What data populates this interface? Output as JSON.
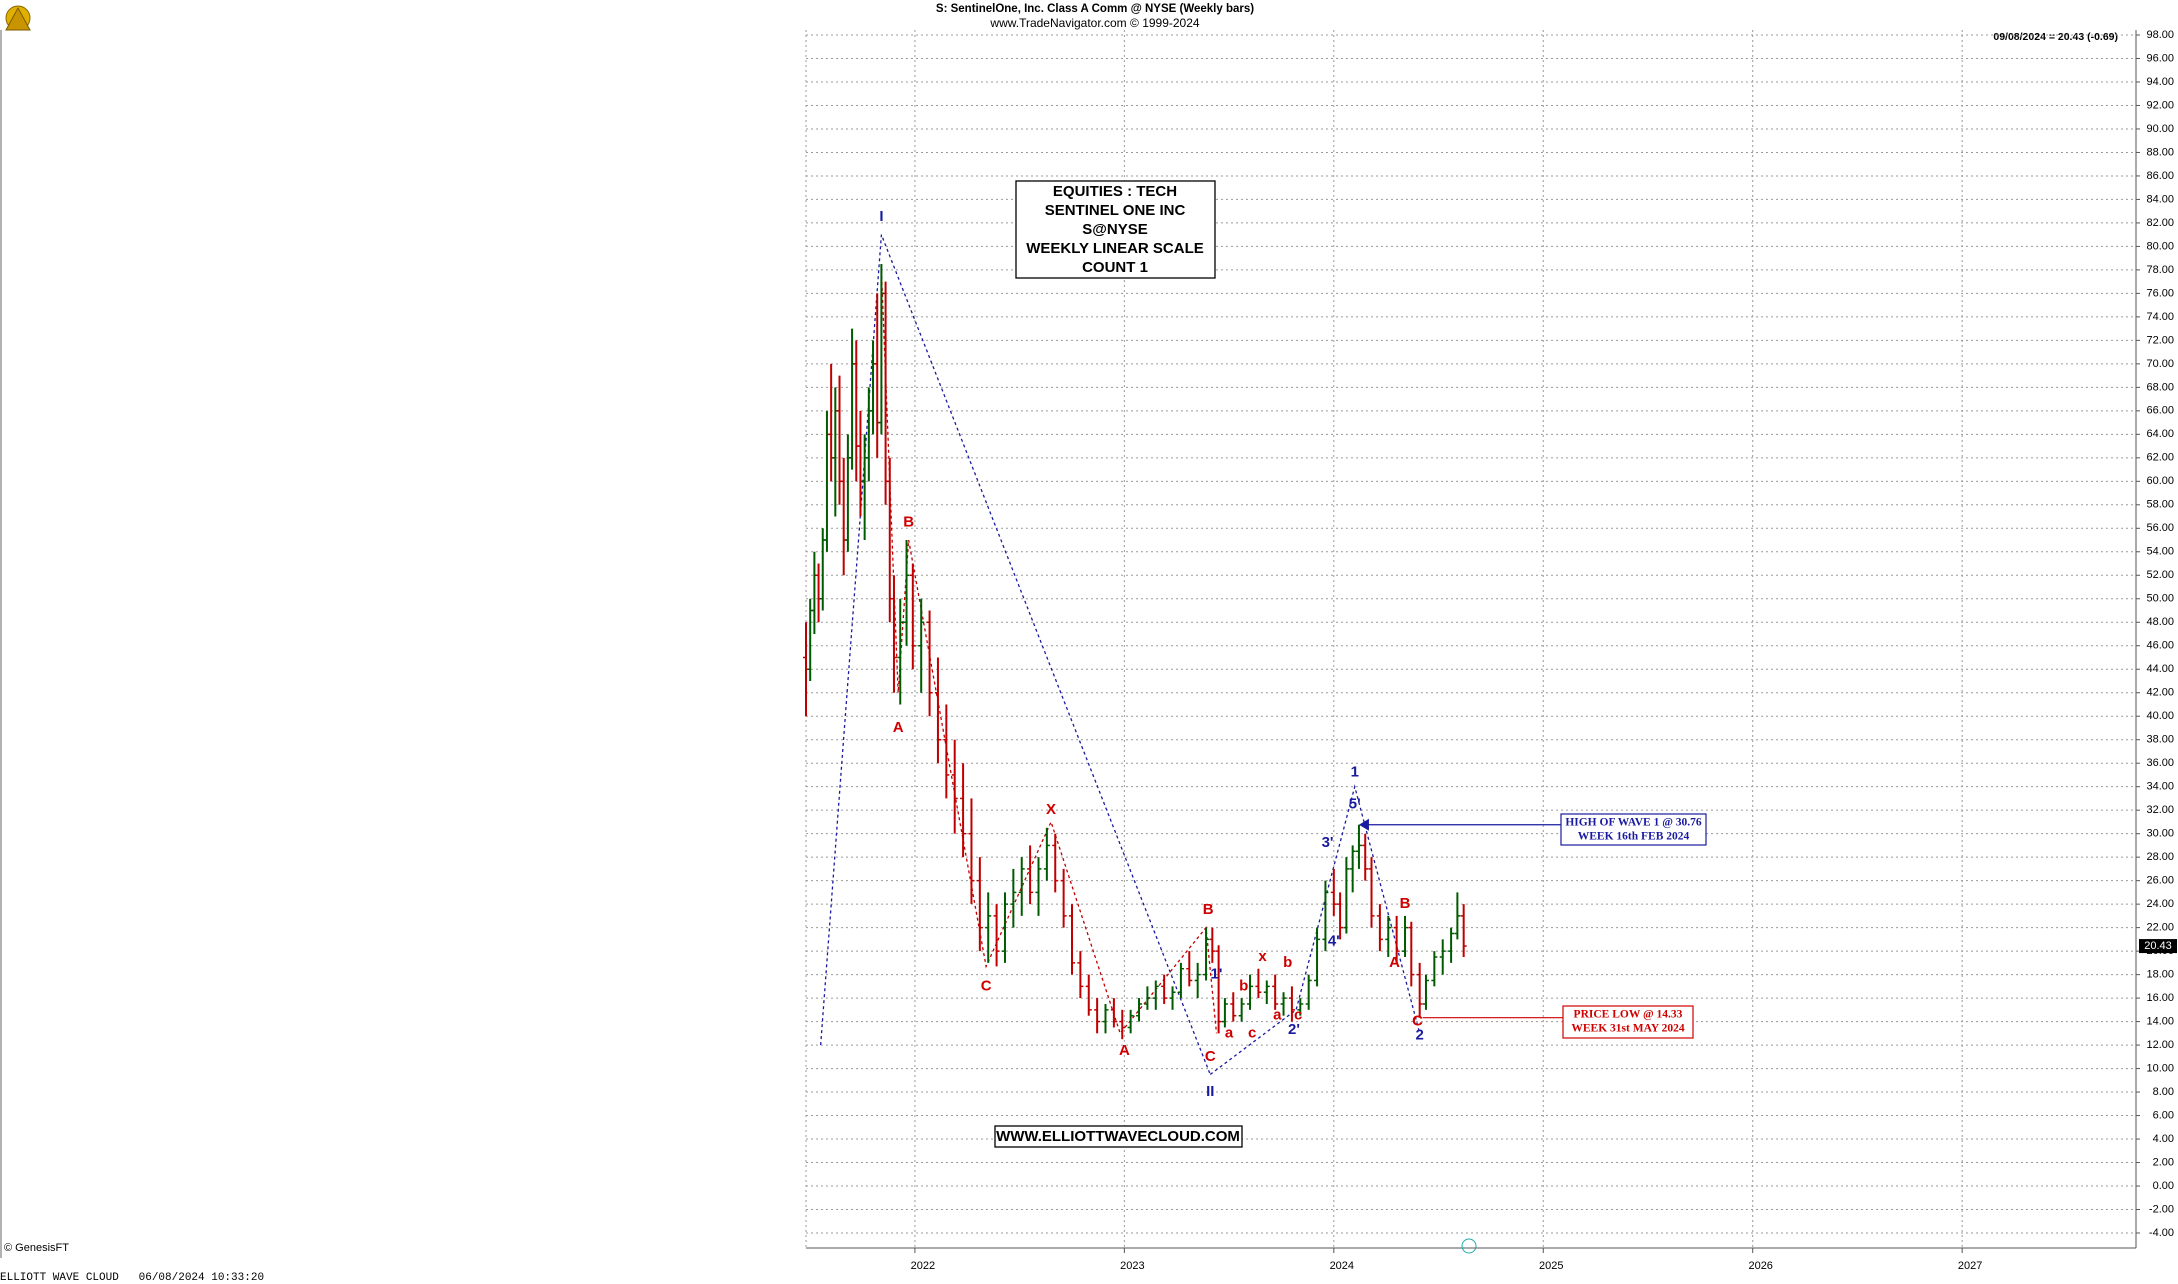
{
  "chart_data": {
    "type": "ohlc",
    "title": "S:  SentinelOne, Inc. Class A Comm @ NYSE  (Weekly bars)",
    "subtitle": "www.TradeNavigator.com © 1999-2024",
    "last_quote": "09/08/2024 = 20.43 (-0.69)",
    "last_price": 20.43,
    "copyright": "© GenesisFT",
    "footer": "ELLIOTT WAVE CLOUD   06/08/2024 10:33:20",
    "up_color": "#005a00",
    "down_color": "#c00000",
    "x": [
      2021.48,
      2021.5,
      2021.52,
      2021.54,
      2021.56,
      2021.58,
      2021.6,
      2021.62,
      2021.64,
      2021.66,
      2021.68,
      2021.7,
      2021.72,
      2021.74,
      2021.76,
      2021.78,
      2021.8,
      2021.82,
      2021.84,
      2021.86,
      2021.88,
      2021.9,
      2021.93,
      2021.96,
      2021.99,
      2022.03,
      2022.07,
      2022.11,
      2022.15,
      2022.19,
      2022.23,
      2022.27,
      2022.31,
      2022.35,
      2022.39,
      2022.43,
      2022.47,
      2022.51,
      2022.55,
      2022.59,
      2022.63,
      2022.67,
      2022.71,
      2022.75,
      2022.79,
      2022.83,
      2022.87,
      2022.91,
      2022.95,
      2022.99,
      2023.03,
      2023.07,
      2023.11,
      2023.15,
      2023.19,
      2023.23,
      2023.27,
      2023.31,
      2023.35,
      2023.39,
      2023.42,
      2023.45,
      2023.48,
      2023.52,
      2023.56,
      2023.6,
      2023.64,
      2023.68,
      2023.72,
      2023.76,
      2023.8,
      2023.84,
      2023.88,
      2023.92,
      2023.96,
      2024.0,
      2024.03,
      2024.06,
      2024.09,
      2024.12,
      2024.15,
      2024.18,
      2024.22,
      2024.26,
      2024.3,
      2024.34,
      2024.37,
      2024.41,
      2024.44,
      2024.48,
      2024.52,
      2024.56,
      2024.59,
      2024.62
    ],
    "open": [
      45,
      44,
      49,
      52,
      50,
      55,
      64,
      62,
      66,
      60,
      55,
      62,
      70,
      63,
      60,
      62,
      66,
      70,
      65,
      76,
      60,
      50,
      45,
      48,
      52,
      46,
      48,
      42,
      38,
      35,
      33,
      30,
      26,
      22,
      23,
      20,
      24,
      25,
      27,
      25,
      27,
      29,
      26,
      23,
      19,
      17,
      15,
      14,
      15,
      14,
      13.5,
      14.5,
      15.5,
      16,
      17,
      16,
      16.5,
      18.5,
      17.5,
      18,
      21,
      20,
      14,
      15.5,
      14.5,
      15.5,
      17,
      16.5,
      17,
      15.5,
      16,
      15,
      15.5,
      17.5,
      21,
      25,
      24,
      22,
      27,
      28.5,
      29,
      27,
      23,
      21,
      22,
      20,
      22,
      18,
      15.5,
      17.5,
      19.5,
      20,
      21.5,
      23
    ],
    "high": [
      48,
      50,
      54,
      53,
      56,
      66,
      70,
      68,
      69,
      62,
      64,
      73,
      72,
      66,
      64,
      68,
      72,
      76,
      78.5,
      77,
      62,
      52,
      50,
      55,
      53,
      50,
      49,
      45,
      41,
      38,
      36,
      33,
      28,
      25,
      24,
      25,
      27,
      28,
      29,
      28,
      30.5,
      30,
      27,
      24,
      20,
      18,
      16,
      15.5,
      16,
      15,
      15,
      16,
      17,
      17.5,
      18,
      17,
      19,
      20,
      19,
      22,
      22,
      20.5,
      16,
      16.5,
      16,
      18,
      18.5,
      17.5,
      18,
      16.5,
      17,
      16,
      18,
      22,
      26,
      27,
      25,
      28,
      29,
      30.76,
      30,
      28,
      24,
      23,
      23,
      23,
      22.5,
      19,
      18,
      20,
      21,
      22,
      25,
      24
    ],
    "low": [
      40,
      43,
      47,
      48,
      49,
      54,
      60,
      57,
      58,
      52,
      54,
      61,
      60,
      57,
      55,
      60,
      64,
      62,
      64,
      58,
      48,
      42,
      41,
      46,
      44,
      42,
      40,
      36,
      33,
      30,
      28,
      24,
      20,
      19,
      18.7,
      19,
      22,
      23,
      24,
      23,
      26,
      25,
      22,
      18,
      16,
      14.5,
      13,
      13,
      13.5,
      12.5,
      13,
      14,
      15,
      15,
      15.5,
      15,
      16,
      17,
      16,
      17.5,
      19,
      13,
      13.5,
      14,
      14,
      15,
      16,
      15.5,
      15,
      14.5,
      14,
      14.5,
      15,
      17,
      20,
      23,
      21,
      21.5,
      25,
      27,
      26,
      22,
      20,
      19.5,
      19,
      19.5,
      17,
      14.33,
      15,
      17,
      18,
      19,
      21,
      19.5
    ],
    "close": [
      44,
      49,
      52,
      50,
      55,
      64,
      62,
      66,
      60,
      55,
      62,
      70,
      63,
      60,
      62,
      66,
      70,
      65,
      76,
      60,
      50,
      45,
      48,
      52,
      46,
      48,
      42,
      38,
      35,
      33,
      30,
      26,
      22,
      23,
      20,
      24,
      25,
      27,
      25,
      27,
      29,
      26,
      23,
      19,
      17,
      15,
      14,
      15,
      14,
      13.5,
      14.5,
      15.5,
      16,
      17,
      16,
      16.5,
      18.5,
      17.5,
      18,
      21,
      20,
      14,
      15.5,
      14.5,
      15.5,
      17,
      16.5,
      17,
      15.5,
      16,
      15,
      15.5,
      17.5,
      21,
      25,
      24,
      22,
      27,
      28.5,
      29,
      27,
      23,
      21,
      22,
      20,
      22,
      18,
      15.5,
      17.5,
      19.5,
      20,
      21.5,
      23,
      20.43
    ],
    "xlim": [
      2021.48,
      2027.83
    ],
    "xticks": [
      2022,
      2023,
      2024,
      2025,
      2026,
      2027
    ],
    "ylim": [
      -4,
      98
    ],
    "yticks": [
      {
        "value": -4,
        "label": "-4.00"
      },
      {
        "value": -2,
        "label": "-2.00"
      },
      {
        "value": 0,
        "label": "0.00"
      },
      {
        "value": 2,
        "label": "2.00"
      },
      {
        "value": 4,
        "label": "4.00"
      },
      {
        "value": 6,
        "label": "6.00"
      },
      {
        "value": 8,
        "label": "8.00"
      },
      {
        "value": 10,
        "label": "10.00"
      },
      {
        "value": 12,
        "label": "12.00"
      },
      {
        "value": 14,
        "label": "14.00"
      },
      {
        "value": 16,
        "label": "16.00"
      },
      {
        "value": 18,
        "label": "18.00"
      },
      {
        "value": 20,
        "label": "20.00"
      },
      {
        "value": 22,
        "label": "22.00"
      },
      {
        "value": 24,
        "label": "24.00"
      },
      {
        "value": 26,
        "label": "26.00"
      },
      {
        "value": 28,
        "label": "28.00"
      },
      {
        "value": 30,
        "label": "30.00"
      },
      {
        "value": 32,
        "label": "32.00"
      },
      {
        "value": 34,
        "label": "34.00"
      },
      {
        "value": 36,
        "label": "36.00"
      },
      {
        "value": 38,
        "label": "38.00"
      },
      {
        "value": 40,
        "label": "40.00"
      },
      {
        "value": 42,
        "label": "42.00"
      },
      {
        "value": 44,
        "label": "44.00"
      },
      {
        "value": 46,
        "label": "46.00"
      },
      {
        "value": 48,
        "label": "48.00"
      },
      {
        "value": 50,
        "label": "50.00"
      },
      {
        "value": 52,
        "label": "52.00"
      },
      {
        "value": 54,
        "label": "54.00"
      },
      {
        "value": 56,
        "label": "56.00"
      },
      {
        "value": 58,
        "label": "58.00"
      },
      {
        "value": 60,
        "label": "60.00"
      },
      {
        "value": 62,
        "label": "62.00"
      },
      {
        "value": 64,
        "label": "64.00"
      },
      {
        "value": 66,
        "label": "66.00"
      },
      {
        "value": 68,
        "label": "68.00"
      },
      {
        "value": 70,
        "label": "70.00"
      },
      {
        "value": 72,
        "label": "72.00"
      },
      {
        "value": 74,
        "label": "74.00"
      },
      {
        "value": 76,
        "label": "76.00"
      },
      {
        "value": 78,
        "label": "78.00"
      },
      {
        "value": 80,
        "label": "80.00"
      },
      {
        "value": 82,
        "label": "82.00"
      },
      {
        "value": 84,
        "label": "84.00"
      },
      {
        "value": 86,
        "label": "86.00"
      },
      {
        "value": 88,
        "label": "88.00"
      },
      {
        "value": 90,
        "label": "90.00"
      },
      {
        "value": 92,
        "label": "92.00"
      },
      {
        "value": 94,
        "label": "94.00"
      },
      {
        "value": 96,
        "label": "96.00"
      },
      {
        "value": 98,
        "label": "98.00"
      }
    ],
    "grid": true,
    "wave_lines": [
      {
        "color": "#1a1aa0",
        "x": [
          2021.55,
          2021.84,
          2023.41
        ],
        "y": [
          12,
          81,
          9.5
        ]
      },
      {
        "color": "#1a1aa0",
        "x": [
          2023.41,
          2023.82,
          2024.1,
          2024.41
        ],
        "y": [
          9.5,
          15,
          34,
          13
        ]
      },
      {
        "color": "#c00000",
        "x": [
          2021.84,
          2021.92,
          2021.97,
          2022.34,
          2022.65,
          2022.98,
          2023.39,
          2023.44
        ],
        "y": [
          78,
          42,
          55,
          18.7,
          31,
          13,
          22,
          13
        ]
      }
    ],
    "annotations": [
      {
        "text": "I",
        "x": 2021.84,
        "y": 82.5,
        "color": "#1a1aa0"
      },
      {
        "text": "B",
        "x": 2021.97,
        "y": 56.5,
        "color": "#d00000"
      },
      {
        "text": "A",
        "x": 2021.92,
        "y": 39,
        "color": "#d00000"
      },
      {
        "text": "C",
        "x": 2022.34,
        "y": 17,
        "color": "#d00000"
      },
      {
        "text": "X",
        "x": 2022.65,
        "y": 32,
        "color": "#d00000"
      },
      {
        "text": "A",
        "x": 2023.0,
        "y": 11.5,
        "color": "#d00000"
      },
      {
        "text": "B",
        "x": 2023.4,
        "y": 23.5,
        "color": "#d00000"
      },
      {
        "text": "C",
        "x": 2023.41,
        "y": 11,
        "color": "#d00000"
      },
      {
        "text": "II",
        "x": 2023.41,
        "y": 8,
        "color": "#1a1aa0"
      },
      {
        "text": "1'",
        "x": 2023.44,
        "y": 18,
        "color": "#1a1aa0"
      },
      {
        "text": "a",
        "x": 2023.5,
        "y": 13,
        "color": "#d00000"
      },
      {
        "text": "b",
        "x": 2023.57,
        "y": 17,
        "color": "#d00000"
      },
      {
        "text": "c",
        "x": 2023.61,
        "y": 13,
        "color": "#d00000"
      },
      {
        "text": "x",
        "x": 2023.66,
        "y": 19.5,
        "color": "#d00000"
      },
      {
        "text": "b",
        "x": 2023.78,
        "y": 19,
        "color": "#d00000"
      },
      {
        "text": "a",
        "x": 2023.73,
        "y": 14.5,
        "color": "#d00000"
      },
      {
        "text": "c",
        "x": 2023.83,
        "y": 14.5,
        "color": "#d00000"
      },
      {
        "text": "2'",
        "x": 2023.81,
        "y": 13.3,
        "color": "#1a1aa0"
      },
      {
        "text": "3'",
        "x": 2023.97,
        "y": 29.2,
        "color": "#1a1aa0"
      },
      {
        "text": "4'",
        "x": 2024.0,
        "y": 20.8,
        "color": "#1a1aa0"
      },
      {
        "text": "5'",
        "x": 2024.1,
        "y": 32.5,
        "color": "#1a1aa0"
      },
      {
        "text": "1",
        "x": 2024.1,
        "y": 35.2,
        "color": "#1a1aa0"
      },
      {
        "text": "A",
        "x": 2024.29,
        "y": 19,
        "color": "#d00000"
      },
      {
        "text": "B",
        "x": 2024.34,
        "y": 24,
        "color": "#d00000"
      },
      {
        "text": "C",
        "x": 2024.4,
        "y": 14,
        "color": "#d00000"
      },
      {
        "text": "2",
        "x": 2024.41,
        "y": 12.8,
        "color": "#1a1aa0"
      }
    ],
    "info_box": [
      "EQUITIES : TECH",
      "SENTINEL ONE INC",
      "S@NYSE",
      "WEEKLY LINEAR SCALE",
      "COUNT 1"
    ],
    "website": "WWW.ELLIOTTWAVECLOUD.COM",
    "callouts": [
      {
        "lines": [
          "HIGH OF WAVE 1 @ 30.76",
          "WEEK 16th FEB 2024"
        ],
        "color": "#1a1aa0",
        "x": 2024.12,
        "y": 30.76
      },
      {
        "lines": [
          "PRICE LOW @ 14.33",
          "WEEK 31st MAY 2024"
        ],
        "color": "#d00000",
        "x": 2024.41,
        "y": 14.33
      }
    ]
  }
}
